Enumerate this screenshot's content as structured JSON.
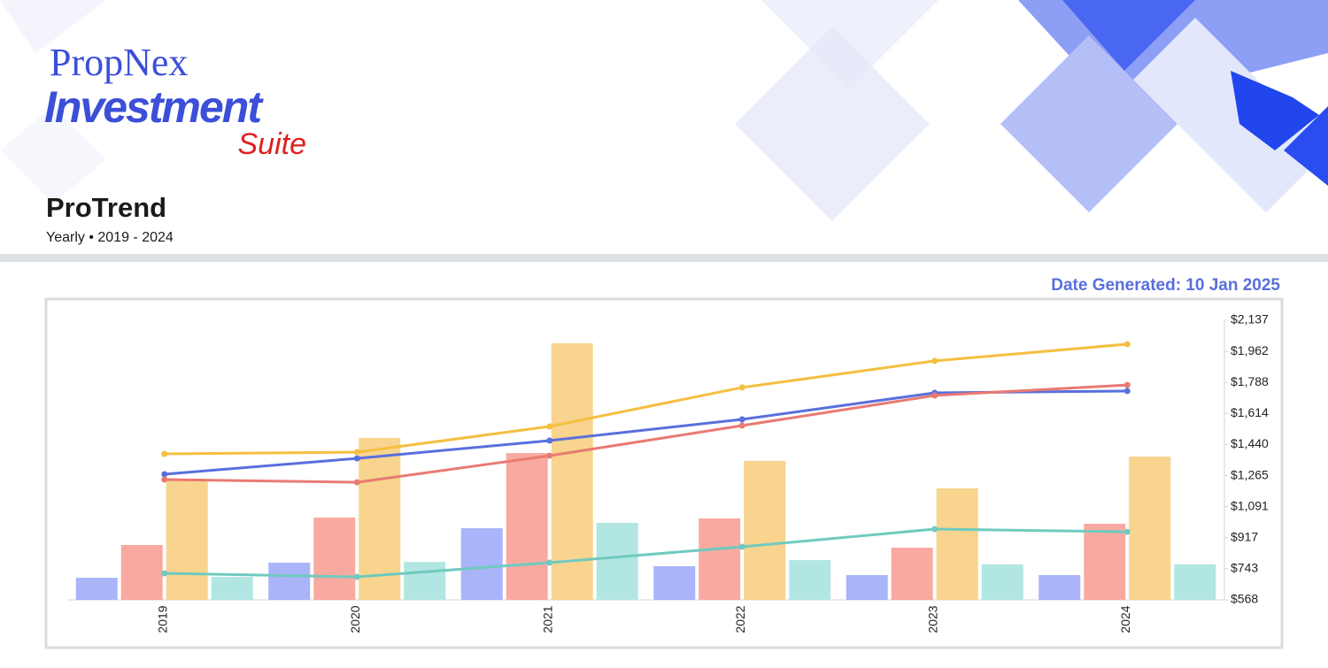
{
  "header": {
    "brand": "PropNex",
    "product": "Investment",
    "product_suffix": "Suite",
    "title": "ProTrend",
    "subtitle": "Yearly • 2019 - 2024",
    "date_generated": "Date Generated: 10 Jan 2025"
  },
  "chart_data": {
    "type": "bar-line",
    "categories": [
      "2019",
      "2020",
      "2021",
      "2022",
      "2023",
      "2024"
    ],
    "series": [
      {
        "kind": "bar",
        "color": "#aab4f8",
        "values": [
          692,
          777,
          970,
          757,
          707,
          707
        ]
      },
      {
        "kind": "bar",
        "color": "#f9aaa0",
        "values": [
          876,
          1030,
          1392,
          1025,
          861,
          995
        ]
      },
      {
        "kind": "bar",
        "color": "#f8d48e",
        "values": [
          1248,
          1477,
          2008,
          1348,
          1194,
          1372
        ]
      },
      {
        "kind": "bar",
        "color": "#b2e6e2",
        "values": [
          697,
          781,
          1000,
          791,
          767,
          767
        ]
      },
      {
        "kind": "line",
        "color": "#f4bf3f",
        "values": [
          1387,
          1397,
          1541,
          1760,
          1909,
          2003
        ]
      },
      {
        "kind": "line",
        "color": "#5a6fdc",
        "values": [
          1273,
          1362,
          1462,
          1581,
          1730,
          1740
        ]
      },
      {
        "kind": "line",
        "color": "#e97a72",
        "values": [
          1243,
          1228,
          1377,
          1546,
          1715,
          1774
        ]
      },
      {
        "kind": "line",
        "color": "#6fcabf",
        "values": [
          717,
          697,
          777,
          866,
          965,
          950
        ]
      }
    ],
    "ylim": [
      568,
      2137
    ],
    "yticks": [
      {
        "value": 568,
        "label": "$568"
      },
      {
        "value": 743,
        "label": "$743"
      },
      {
        "value": 917,
        "label": "$917"
      },
      {
        "value": 1091,
        "label": "$1,091"
      },
      {
        "value": 1265,
        "label": "$1,265"
      },
      {
        "value": 1440,
        "label": "$1,440"
      },
      {
        "value": 1614,
        "label": "$1,614"
      },
      {
        "value": 1788,
        "label": "$1,788"
      },
      {
        "value": 1962,
        "label": "$1,962"
      },
      {
        "value": 2137,
        "label": "$2,137"
      }
    ],
    "grid": false
  }
}
